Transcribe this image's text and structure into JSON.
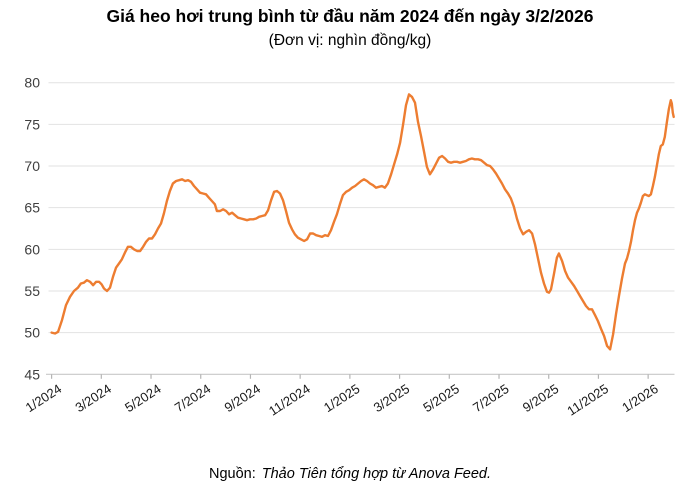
{
  "title": "Giá heo hơi trung bình từ đầu năm 2024 đến ngày 3/2/2026",
  "subtitle": "(Đơn vị: nghìn đồng/kg)",
  "source": {
    "label": "Nguồn:",
    "text": "Thảo Tiên tổng hợp từ Anova Feed."
  },
  "chart_data": {
    "type": "line",
    "title": "Giá heo hơi trung bình từ đầu năm 2024 đến ngày 3/2/2026",
    "unit_note": "Đơn vị: nghìn đồng/kg",
    "series_name": "Giá heo hơi trung bình",
    "line_color": "#ED7D31",
    "grid_color": "#E2E2E2",
    "axis_color": "#C8C8C8",
    "tick_color": "#B5B5B5",
    "ylim": [
      45,
      80
    ],
    "y_ticks": [
      45,
      50,
      55,
      60,
      65,
      70,
      75,
      80
    ],
    "x_tick_labels": [
      "1/2024",
      "3/2024",
      "5/2024",
      "7/2024",
      "9/2024",
      "11/2024",
      "1/2025",
      "3/2025",
      "5/2025",
      "7/2025",
      "9/2025",
      "11/2025",
      "1/2026"
    ],
    "x_tick_months": [
      0,
      2,
      4,
      6,
      8,
      10,
      12,
      14,
      16,
      18,
      20,
      22,
      24
    ],
    "x_unit": "months since 2024-01 (last point 2026-02-03)",
    "grid": true,
    "legend": "none",
    "points": [
      [
        0.0,
        50.0
      ],
      [
        0.14,
        49.9
      ],
      [
        0.26,
        50.1
      ],
      [
        0.42,
        51.5
      ],
      [
        0.58,
        53.3
      ],
      [
        0.74,
        54.3
      ],
      [
        0.9,
        55.0
      ],
      [
        1.06,
        55.4
      ],
      [
        1.18,
        55.9
      ],
      [
        1.3,
        56.0
      ],
      [
        1.42,
        56.3
      ],
      [
        1.55,
        56.1
      ],
      [
        1.67,
        55.7
      ],
      [
        1.79,
        56.1
      ],
      [
        1.91,
        56.1
      ],
      [
        2.01,
        55.8
      ],
      [
        2.11,
        55.3
      ],
      [
        2.23,
        55.0
      ],
      [
        2.35,
        55.4
      ],
      [
        2.47,
        56.7
      ],
      [
        2.59,
        57.8
      ],
      [
        2.71,
        58.3
      ],
      [
        2.83,
        58.8
      ],
      [
        2.95,
        59.6
      ],
      [
        3.07,
        60.3
      ],
      [
        3.19,
        60.3
      ],
      [
        3.31,
        60.0
      ],
      [
        3.44,
        59.8
      ],
      [
        3.56,
        59.8
      ],
      [
        3.68,
        60.3
      ],
      [
        3.8,
        60.9
      ],
      [
        3.92,
        61.3
      ],
      [
        4.04,
        61.3
      ],
      [
        4.16,
        61.8
      ],
      [
        4.28,
        62.5
      ],
      [
        4.4,
        63.1
      ],
      [
        4.52,
        64.3
      ],
      [
        4.64,
        65.8
      ],
      [
        4.76,
        67.0
      ],
      [
        4.88,
        67.9
      ],
      [
        5.01,
        68.2
      ],
      [
        5.13,
        68.3
      ],
      [
        5.25,
        68.4
      ],
      [
        5.37,
        68.2
      ],
      [
        5.49,
        68.3
      ],
      [
        5.61,
        68.1
      ],
      [
        5.73,
        67.6
      ],
      [
        5.85,
        67.2
      ],
      [
        5.97,
        66.8
      ],
      [
        6.09,
        66.7
      ],
      [
        6.21,
        66.6
      ],
      [
        6.33,
        66.2
      ],
      [
        6.45,
        65.8
      ],
      [
        6.57,
        65.4
      ],
      [
        6.65,
        64.6
      ],
      [
        6.78,
        64.6
      ],
      [
        6.9,
        64.8
      ],
      [
        7.02,
        64.6
      ],
      [
        7.14,
        64.2
      ],
      [
        7.26,
        64.4
      ],
      [
        7.38,
        64.1
      ],
      [
        7.5,
        63.8
      ],
      [
        7.62,
        63.7
      ],
      [
        7.74,
        63.6
      ],
      [
        7.86,
        63.5
      ],
      [
        7.98,
        63.6
      ],
      [
        8.11,
        63.6
      ],
      [
        8.23,
        63.7
      ],
      [
        8.35,
        63.9
      ],
      [
        8.47,
        64.0
      ],
      [
        8.59,
        64.1
      ],
      [
        8.71,
        64.7
      ],
      [
        8.83,
        65.9
      ],
      [
        8.95,
        66.9
      ],
      [
        9.07,
        67.0
      ],
      [
        9.19,
        66.7
      ],
      [
        9.31,
        65.9
      ],
      [
        9.43,
        64.6
      ],
      [
        9.55,
        63.2
      ],
      [
        9.67,
        62.4
      ],
      [
        9.79,
        61.8
      ],
      [
        9.91,
        61.4
      ],
      [
        10.03,
        61.2
      ],
      [
        10.16,
        61.0
      ],
      [
        10.28,
        61.2
      ],
      [
        10.4,
        61.9
      ],
      [
        10.52,
        61.9
      ],
      [
        10.64,
        61.7
      ],
      [
        10.76,
        61.6
      ],
      [
        10.88,
        61.5
      ],
      [
        11.0,
        61.7
      ],
      [
        11.12,
        61.6
      ],
      [
        11.24,
        62.3
      ],
      [
        11.36,
        63.3
      ],
      [
        11.48,
        64.2
      ],
      [
        11.6,
        65.4
      ],
      [
        11.72,
        66.5
      ],
      [
        11.85,
        66.9
      ],
      [
        11.97,
        67.1
      ],
      [
        12.09,
        67.4
      ],
      [
        12.21,
        67.6
      ],
      [
        12.33,
        67.9
      ],
      [
        12.45,
        68.2
      ],
      [
        12.57,
        68.4
      ],
      [
        12.69,
        68.2
      ],
      [
        12.81,
        67.9
      ],
      [
        12.93,
        67.7
      ],
      [
        13.05,
        67.4
      ],
      [
        13.17,
        67.5
      ],
      [
        13.29,
        67.6
      ],
      [
        13.41,
        67.4
      ],
      [
        13.53,
        67.9
      ],
      [
        13.66,
        69.0
      ],
      [
        13.78,
        70.2
      ],
      [
        13.9,
        71.4
      ],
      [
        14.02,
        72.8
      ],
      [
        14.14,
        75.0
      ],
      [
        14.26,
        77.3
      ],
      [
        14.38,
        78.6
      ],
      [
        14.5,
        78.3
      ],
      [
        14.62,
        77.6
      ],
      [
        14.74,
        75.3
      ],
      [
        14.86,
        73.6
      ],
      [
        14.98,
        71.8
      ],
      [
        15.1,
        69.9
      ],
      [
        15.22,
        69.0
      ],
      [
        15.35,
        69.6
      ],
      [
        15.47,
        70.3
      ],
      [
        15.59,
        71.0
      ],
      [
        15.71,
        71.2
      ],
      [
        15.83,
        70.9
      ],
      [
        15.95,
        70.5
      ],
      [
        16.07,
        70.4
      ],
      [
        16.19,
        70.5
      ],
      [
        16.31,
        70.5
      ],
      [
        16.43,
        70.4
      ],
      [
        16.55,
        70.5
      ],
      [
        16.67,
        70.6
      ],
      [
        16.79,
        70.8
      ],
      [
        16.91,
        70.9
      ],
      [
        17.03,
        70.8
      ],
      [
        17.16,
        70.8
      ],
      [
        17.28,
        70.7
      ],
      [
        17.4,
        70.4
      ],
      [
        17.52,
        70.1
      ],
      [
        17.64,
        70.0
      ],
      [
        17.76,
        69.6
      ],
      [
        17.88,
        69.1
      ],
      [
        18.0,
        68.5
      ],
      [
        18.12,
        67.9
      ],
      [
        18.24,
        67.2
      ],
      [
        18.36,
        66.7
      ],
      [
        18.48,
        66.1
      ],
      [
        18.6,
        65.1
      ],
      [
        18.72,
        63.7
      ],
      [
        18.85,
        62.5
      ],
      [
        18.97,
        61.8
      ],
      [
        19.09,
        62.1
      ],
      [
        19.21,
        62.3
      ],
      [
        19.33,
        61.9
      ],
      [
        19.45,
        60.6
      ],
      [
        19.57,
        58.9
      ],
      [
        19.69,
        57.2
      ],
      [
        19.81,
        55.9
      ],
      [
        19.93,
        54.9
      ],
      [
        20.01,
        54.8
      ],
      [
        20.09,
        55.2
      ],
      [
        20.21,
        57.0
      ],
      [
        20.33,
        59.0
      ],
      [
        20.41,
        59.5
      ],
      [
        20.54,
        58.6
      ],
      [
        20.66,
        57.4
      ],
      [
        20.78,
        56.6
      ],
      [
        20.9,
        56.1
      ],
      [
        21.02,
        55.6
      ],
      [
        21.14,
        55.0
      ],
      [
        21.26,
        54.4
      ],
      [
        21.38,
        53.8
      ],
      [
        21.5,
        53.2
      ],
      [
        21.62,
        52.8
      ],
      [
        21.74,
        52.8
      ],
      [
        21.86,
        52.1
      ],
      [
        21.98,
        51.4
      ],
      [
        22.1,
        50.5
      ],
      [
        22.23,
        49.6
      ],
      [
        22.35,
        48.4
      ],
      [
        22.47,
        48.0
      ],
      [
        22.59,
        49.8
      ],
      [
        22.71,
        52.3
      ],
      [
        22.83,
        54.5
      ],
      [
        22.95,
        56.5
      ],
      [
        23.07,
        58.3
      ],
      [
        23.15,
        58.9
      ],
      [
        23.23,
        59.8
      ],
      [
        23.31,
        60.9
      ],
      [
        23.39,
        62.3
      ],
      [
        23.47,
        63.5
      ],
      [
        23.55,
        64.4
      ],
      [
        23.63,
        64.9
      ],
      [
        23.71,
        65.6
      ],
      [
        23.79,
        66.4
      ],
      [
        23.87,
        66.6
      ],
      [
        23.95,
        66.5
      ],
      [
        24.03,
        66.4
      ],
      [
        24.11,
        66.6
      ],
      [
        24.19,
        67.6
      ],
      [
        24.27,
        68.7
      ],
      [
        24.35,
        70.0
      ],
      [
        24.43,
        71.4
      ],
      [
        24.51,
        72.4
      ],
      [
        24.59,
        72.6
      ],
      [
        24.67,
        73.5
      ],
      [
        24.75,
        75.2
      ],
      [
        24.83,
        76.8
      ],
      [
        24.91,
        77.9
      ],
      [
        24.95,
        77.5
      ],
      [
        24.99,
        76.4
      ],
      [
        25.03,
        75.9
      ]
    ]
  }
}
